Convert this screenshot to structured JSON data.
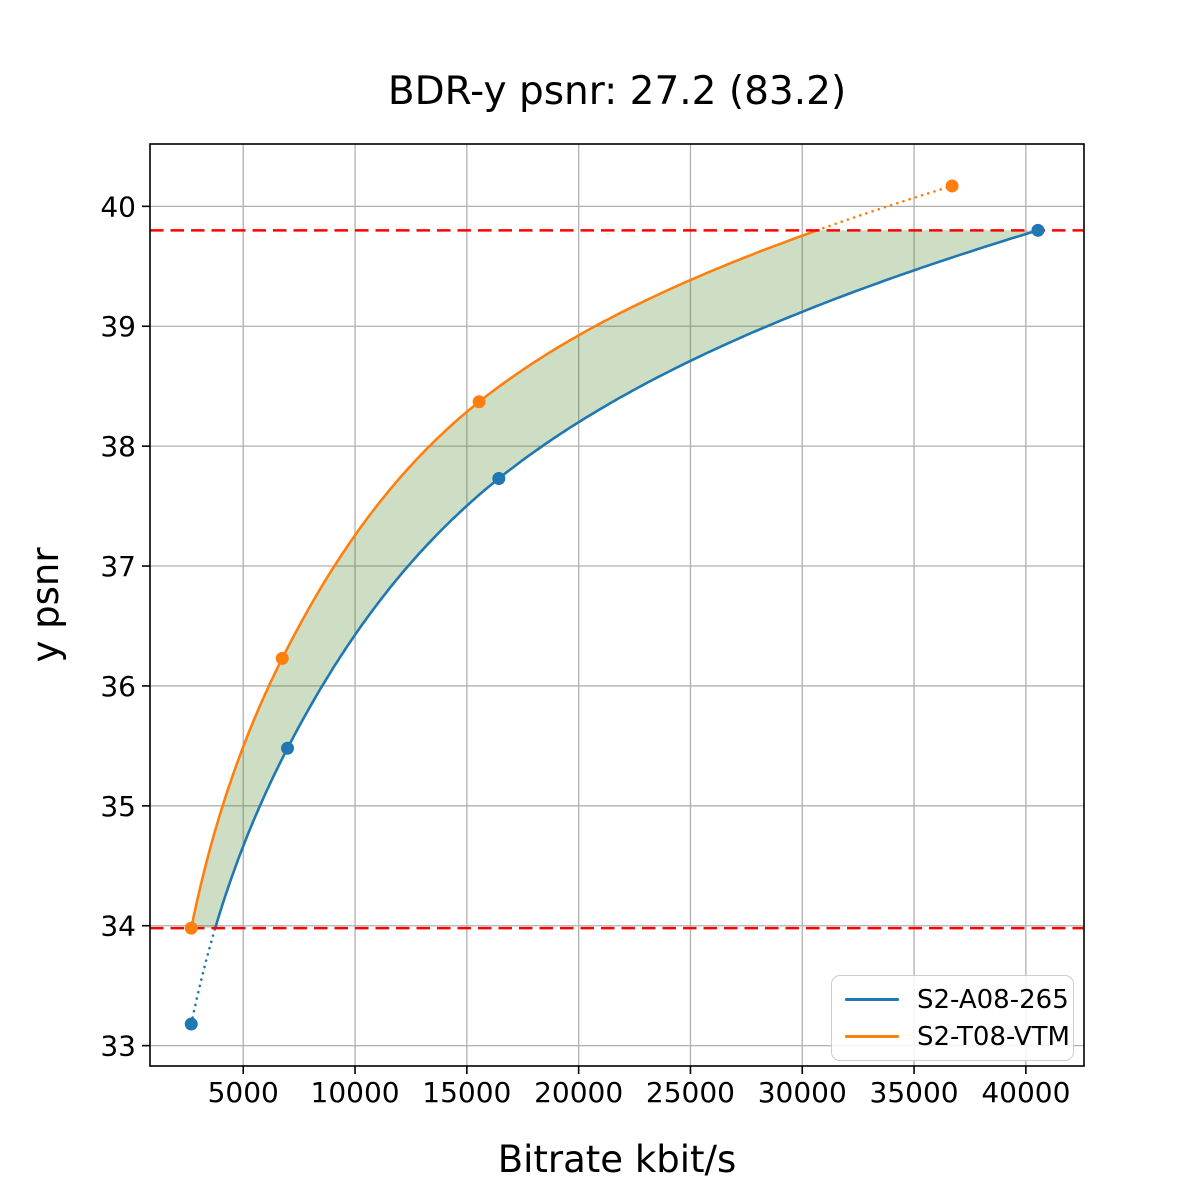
{
  "figure": {
    "title": "BDR-y psnr: 27.2 (83.2)"
  },
  "chart_data": {
    "type": "line",
    "title": "BDR-y psnr: 27.2 (83.2)",
    "xlabel": "Bitrate kbit/s",
    "ylabel": "y psnr",
    "xlim": [
      830,
      42600
    ],
    "ylim": [
      32.83,
      40.52
    ],
    "x_ticks": [
      5000,
      10000,
      15000,
      20000,
      25000,
      30000,
      35000,
      40000
    ],
    "y_ticks": [
      33,
      34,
      35,
      36,
      37,
      38,
      39,
      40
    ],
    "grid": true,
    "grid_color": "#b0b0b0",
    "interpolation": "pchip-log-x",
    "legend_position": "lower right",
    "series": [
      {
        "name": "S2-A08-265",
        "color": "#1f77b4",
        "points": [
          [
            2675,
            33.18
          ],
          [
            6980,
            35.48
          ],
          [
            16430,
            37.73
          ],
          [
            40540,
            39.8
          ]
        ]
      },
      {
        "name": "S2-T08-VTM",
        "color": "#ff7f0e",
        "points": [
          [
            2675,
            33.98
          ],
          [
            6745,
            36.23
          ],
          [
            15550,
            38.37
          ],
          [
            36700,
            40.17
          ]
        ]
      }
    ],
    "overlap_region": {
      "y_low": 33.98,
      "y_high": 39.8,
      "line_color": "#ff0000",
      "line_style": "dashed",
      "fill_color": "#4a8a2e",
      "fill_opacity": 0.28
    }
  }
}
